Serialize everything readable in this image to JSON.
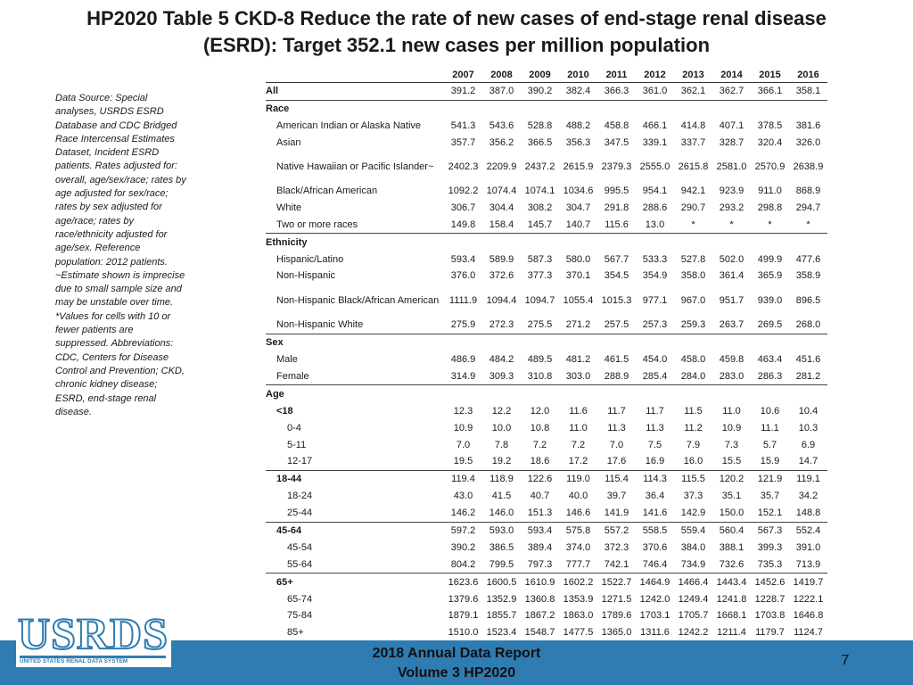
{
  "title_line1": "HP2020 Table 5 CKD-8 Reduce the rate of new cases of end-stage renal disease",
  "title_line2": "(ESRD): Target 352.1 new cases per million population",
  "note": "Data Source: Special analyses, USRDS ESRD Database and CDC Bridged Race Intercensal Estimates Dataset, Incident ESRD patients. Rates adjusted for: overall, age/sex/race; rates by age adjusted for sex/race; rates by sex adjusted for age/race; rates by race/ethnicity adjusted for age/sex. Reference population: 2012 patients. ~Estimate shown is imprecise due to small sample size and may be unstable over time. *Values for cells with 10 or fewer patients are suppressed. Abbreviations: CDC, Centers for Disease Control and Prevention; CKD, chronic kidney disease; ESRD, end-stage renal disease.",
  "years": [
    "2007",
    "2008",
    "2009",
    "2010",
    "2011",
    "2012",
    "2013",
    "2014",
    "2015",
    "2016"
  ],
  "rows": {
    "all": {
      "label": "All",
      "values": [
        "391.2",
        "387.0",
        "390.2",
        "382.4",
        "366.3",
        "361.0",
        "362.1",
        "362.7",
        "366.1",
        "358.1"
      ]
    },
    "race_header": "Race",
    "aian": {
      "label": "American Indian or Alaska Native",
      "values": [
        "541.3",
        "543.6",
        "528.8",
        "488.2",
        "458.8",
        "466.1",
        "414.8",
        "407.1",
        "378.5",
        "381.6"
      ]
    },
    "asian": {
      "label": "Asian",
      "values": [
        "357.7",
        "356.2",
        "366.5",
        "356.3",
        "347.5",
        "339.1",
        "337.7",
        "328.7",
        "320.4",
        "326.0"
      ]
    },
    "nhpi": {
      "label": "Native Hawaiian or Pacific Islander~",
      "values": [
        "2402.3",
        "2209.9",
        "2437.2",
        "2615.9",
        "2379.3",
        "2555.0",
        "2615.8",
        "2581.0",
        "2570.9",
        "2638.9"
      ]
    },
    "black": {
      "label": "Black/African American",
      "values": [
        "1092.2",
        "1074.4",
        "1074.1",
        "1034.6",
        "995.5",
        "954.1",
        "942.1",
        "923.9",
        "911.0",
        "868.9"
      ]
    },
    "white": {
      "label": "White",
      "values": [
        "306.7",
        "304.4",
        "308.2",
        "304.7",
        "291.8",
        "288.6",
        "290.7",
        "293.2",
        "298.8",
        "294.7"
      ]
    },
    "multi": {
      "label": "Two or more races",
      "values": [
        "149.8",
        "158.4",
        "145.7",
        "140.7",
        "115.6",
        "13.0",
        "*",
        "*",
        "*",
        "*"
      ]
    },
    "ethnicity_header": "Ethnicity",
    "hispanic": {
      "label": "Hispanic/Latino",
      "values": [
        "593.4",
        "589.9",
        "587.3",
        "580.0",
        "567.7",
        "533.3",
        "527.8",
        "502.0",
        "499.9",
        "477.6"
      ]
    },
    "nonhispanic": {
      "label": "Non-Hispanic",
      "values": [
        "376.0",
        "372.6",
        "377.3",
        "370.1",
        "354.5",
        "354.9",
        "358.0",
        "361.4",
        "365.9",
        "358.9"
      ]
    },
    "nh_black": {
      "label": "Non-Hispanic Black/African American",
      "values": [
        "1111.9",
        "1094.4",
        "1094.7",
        "1055.4",
        "1015.3",
        "977.1",
        "967.0",
        "951.7",
        "939.0",
        "896.5"
      ]
    },
    "nh_white": {
      "label": "Non-Hispanic White",
      "values": [
        "275.9",
        "272.3",
        "275.5",
        "271.2",
        "257.5",
        "257.3",
        "259.3",
        "263.7",
        "269.5",
        "268.0"
      ]
    },
    "sex_header": "Sex",
    "male": {
      "label": "Male",
      "values": [
        "486.9",
        "484.2",
        "489.5",
        "481.2",
        "461.5",
        "454.0",
        "458.0",
        "459.8",
        "463.4",
        "451.6"
      ]
    },
    "female": {
      "label": "Female",
      "values": [
        "314.9",
        "309.3",
        "310.8",
        "303.0",
        "288.9",
        "285.4",
        "284.0",
        "283.0",
        "286.3",
        "281.2"
      ]
    },
    "age_header": "Age",
    "a_lt18": {
      "label": "<18",
      "values": [
        "12.3",
        "12.2",
        "12.0",
        "11.6",
        "11.7",
        "11.7",
        "11.5",
        "11.0",
        "10.6",
        "10.4"
      ]
    },
    "a_0_4": {
      "label": "0-4",
      "values": [
        "10.9",
        "10.0",
        "10.8",
        "11.0",
        "11.3",
        "11.3",
        "11.2",
        "10.9",
        "11.1",
        "10.3"
      ]
    },
    "a_5_11": {
      "label": "5-11",
      "values": [
        "7.0",
        "7.8",
        "7.2",
        "7.2",
        "7.0",
        "7.5",
        "7.9",
        "7.3",
        "5.7",
        "6.9"
      ]
    },
    "a_12_17": {
      "label": "12-17",
      "values": [
        "19.5",
        "19.2",
        "18.6",
        "17.2",
        "17.6",
        "16.9",
        "16.0",
        "15.5",
        "15.9",
        "14.7"
      ]
    },
    "a_18_44": {
      "label": "18-44",
      "values": [
        "119.4",
        "118.9",
        "122.6",
        "119.0",
        "115.4",
        "114.3",
        "115.5",
        "120.2",
        "121.9",
        "119.1"
      ]
    },
    "a_18_24": {
      "label": "18-24",
      "values": [
        "43.0",
        "41.5",
        "40.7",
        "40.0",
        "39.7",
        "36.4",
        "37.3",
        "35.1",
        "35.7",
        "34.2"
      ]
    },
    "a_25_44": {
      "label": "25-44",
      "values": [
        "146.2",
        "146.0",
        "151.3",
        "146.6",
        "141.9",
        "141.6",
        "142.9",
        "150.0",
        "152.1",
        "148.8"
      ]
    },
    "a_45_64": {
      "label": "45-64",
      "values": [
        "597.2",
        "593.0",
        "593.4",
        "575.8",
        "557.2",
        "558.5",
        "559.4",
        "560.4",
        "567.3",
        "552.4"
      ]
    },
    "a_45_54": {
      "label": "45-54",
      "values": [
        "390.2",
        "386.5",
        "389.4",
        "374.0",
        "372.3",
        "370.6",
        "384.0",
        "388.1",
        "399.3",
        "391.0"
      ]
    },
    "a_55_64": {
      "label": "55-64",
      "values": [
        "804.2",
        "799.5",
        "797.3",
        "777.7",
        "742.1",
        "746.4",
        "734.9",
        "732.6",
        "735.3",
        "713.9"
      ]
    },
    "a_65p": {
      "label": "65+",
      "values": [
        "1623.6",
        "1600.5",
        "1610.9",
        "1602.2",
        "1522.7",
        "1464.9",
        "1466.4",
        "1443.4",
        "1452.6",
        "1419.7"
      ]
    },
    "a_65_74": {
      "label": "65-74",
      "values": [
        "1379.6",
        "1352.9",
        "1360.8",
        "1353.9",
        "1271.5",
        "1242.0",
        "1249.4",
        "1241.8",
        "1228.7",
        "1222.1"
      ]
    },
    "a_75_84": {
      "label": "75-84",
      "values": [
        "1879.1",
        "1855.7",
        "1867.2",
        "1863.0",
        "1789.6",
        "1703.1",
        "1705.7",
        "1668.1",
        "1703.8",
        "1646.8"
      ]
    },
    "a_85p": {
      "label": "85+",
      "values": [
        "1510.0",
        "1523.4",
        "1548.7",
        "1477.5",
        "1365.0",
        "1311.6",
        "1242.2",
        "1211.4",
        "1179.7",
        "1124.7"
      ]
    }
  },
  "footer": {
    "report_line1": "2018 Annual Data Report",
    "report_line2": "Volume 3 HP2020",
    "page_number": "7",
    "logo_text": "USRDS",
    "logo_subtext": "UNITED STATES RENAL DATA SYSTEM",
    "brand_color": "#2f7cb2"
  }
}
